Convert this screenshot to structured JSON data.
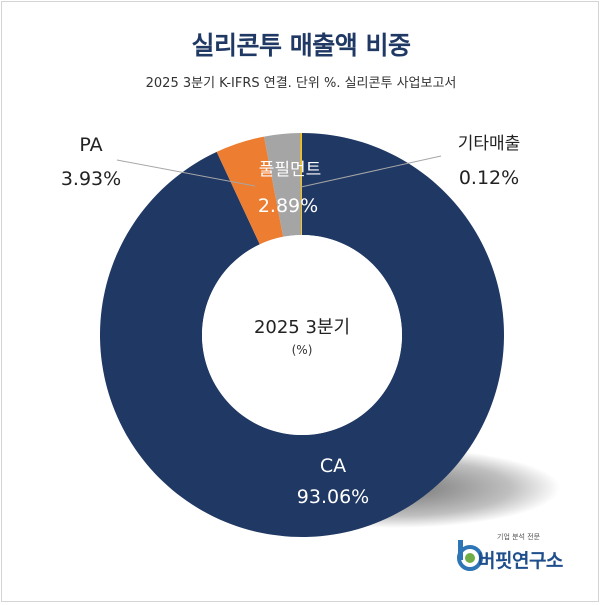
{
  "title": "실리콘투 매출액 비중",
  "subtitle": "2025 3분기 K-IFRS 연결. 단위 %. 실리콘투 사업보고서",
  "center_label": "2025 3분기",
  "center_unit": "(%)",
  "logo": {
    "tagline": "기업 분석 전문",
    "name": "버핏연구소"
  },
  "colors": {
    "CA": "#203864",
    "PA": "#ed7d31",
    "풀필먼트": "#a5a5a5",
    "기타매출": "#ffc000"
  },
  "chart_data": {
    "type": "pie",
    "variant": "donut",
    "categories": [
      "기타매출",
      "풀필먼트",
      "PA",
      "CA"
    ],
    "values": [
      0.12,
      2.89,
      3.93,
      93.06
    ],
    "labels": [
      "0.12%",
      "2.89%",
      "3.93%",
      "93.06%"
    ]
  }
}
